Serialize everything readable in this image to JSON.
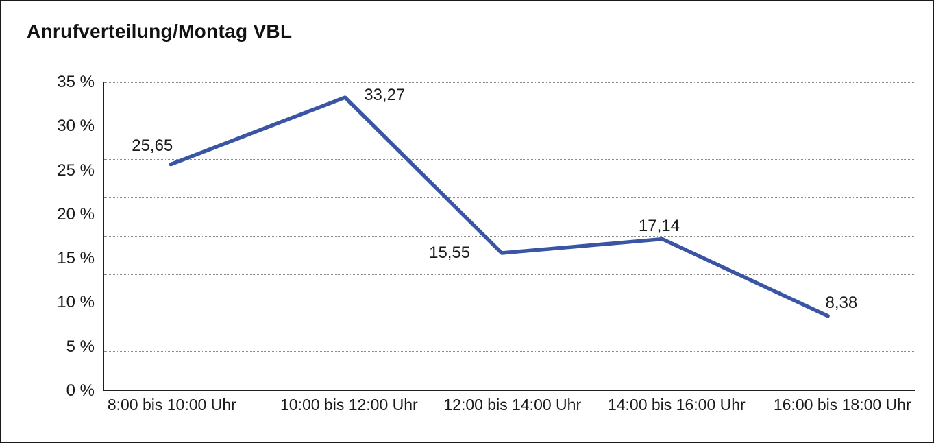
{
  "title": "Anrufverteilung/Montag VBL",
  "chart_data": {
    "type": "line",
    "title": "Anrufverteilung/Montag VBL",
    "categories": [
      "8:00 bis 10:00 Uhr",
      "10:00 bis 12:00 Uhr",
      "12:00 bis 14:00 Uhr",
      "14:00 bis 16:00 Uhr",
      "16:00 bis 18:00 Uhr"
    ],
    "values": [
      25.65,
      33.27,
      15.55,
      17.14,
      8.38
    ],
    "point_labels": [
      "25,65",
      "33,27",
      "15,55",
      "17,14",
      "8,38"
    ],
    "y_tick_labels": [
      "35 %",
      "30 %",
      "25 %",
      "20 %",
      "15 %",
      "10 %",
      "5 %",
      "0 %"
    ],
    "ylim": [
      0,
      35
    ],
    "grid_divisions": 8,
    "grid_style": "horizontal-dotted",
    "legend": "none",
    "xlabel": "",
    "ylabel": "",
    "line_color": "#3A55A3",
    "text_color": "#1a1a1a"
  }
}
